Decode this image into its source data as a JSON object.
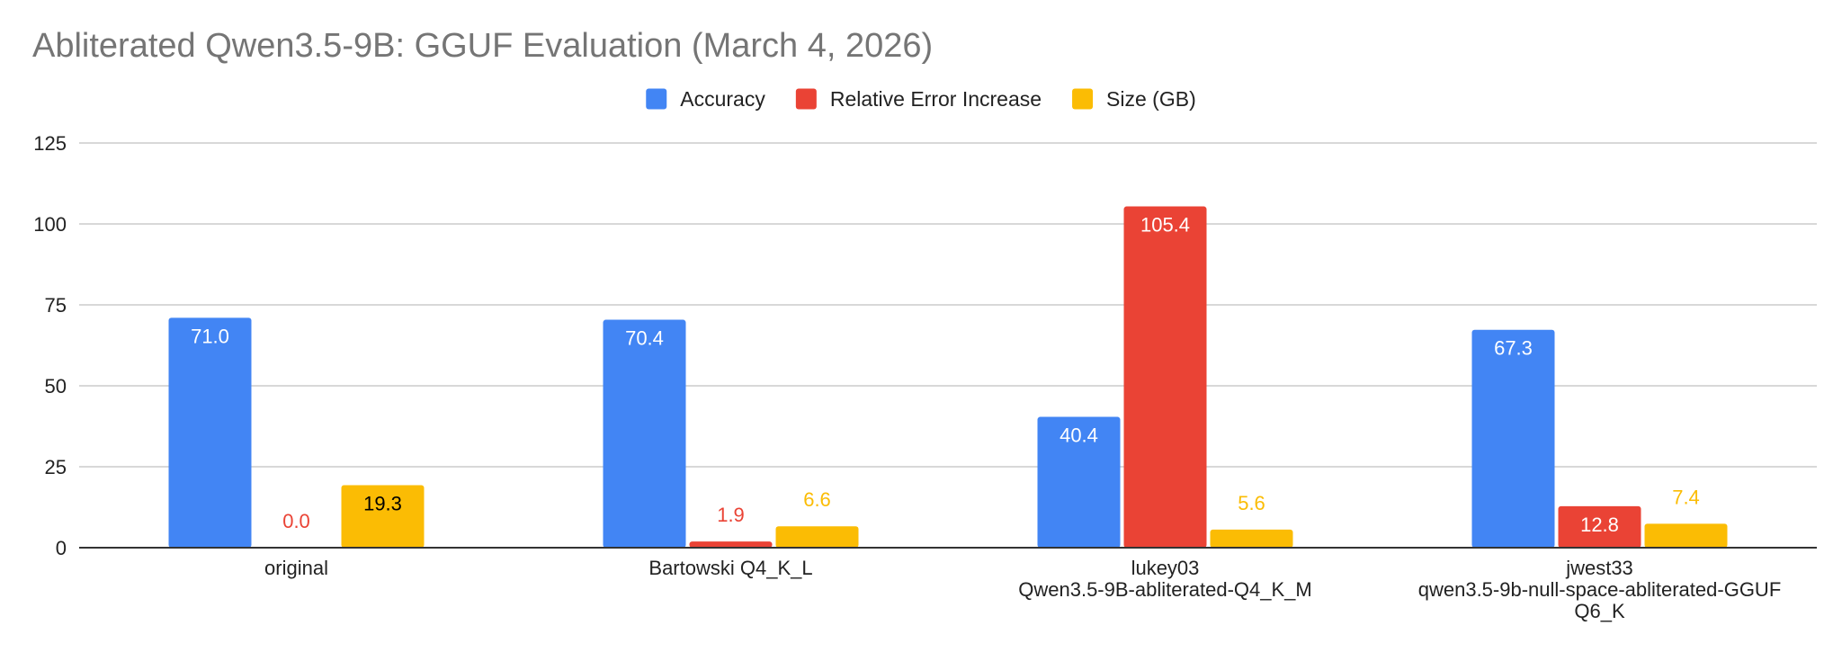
{
  "chart_data": {
    "type": "bar",
    "title": "Abliterated Qwen3.5-9B: GGUF Evaluation (March 4, 2026)",
    "categories": [
      [
        "original"
      ],
      [
        "Bartowski Q4_K_L"
      ],
      [
        "lukey03",
        "Qwen3.5-9B-abliterated-Q4_K_M"
      ],
      [
        "jwest33",
        "qwen3.5-9b-null-space-abliterated-GGUF",
        "Q6_K"
      ]
    ],
    "series": [
      {
        "name": "Accuracy",
        "color": "#4285f4",
        "values": [
          71.0,
          70.4,
          40.4,
          67.3
        ],
        "labels": [
          "71.0",
          "70.4",
          "40.4",
          "67.3"
        ]
      },
      {
        "name": "Relative Error Increase",
        "color": "#ea4335",
        "values": [
          0.0,
          1.9,
          105.4,
          12.8
        ],
        "labels": [
          "0.0",
          "1.9",
          "105.4",
          "12.8"
        ]
      },
      {
        "name": "Size (GB)",
        "color": "#fbbc04",
        "values": [
          19.3,
          6.6,
          5.6,
          7.4
        ],
        "labels": [
          "19.3",
          "6.6",
          "5.6",
          "7.4"
        ]
      }
    ],
    "ylim": [
      0,
      125
    ],
    "yticks": [
      0,
      25,
      50,
      75,
      100,
      125
    ],
    "ytick_labels": [
      "0",
      "25",
      "50",
      "75",
      "100",
      "125"
    ],
    "xlabel": "",
    "ylabel": "",
    "legend": "top-center",
    "grid": true,
    "gridline_color": "#cccccc",
    "baseline_color": "#333333"
  }
}
